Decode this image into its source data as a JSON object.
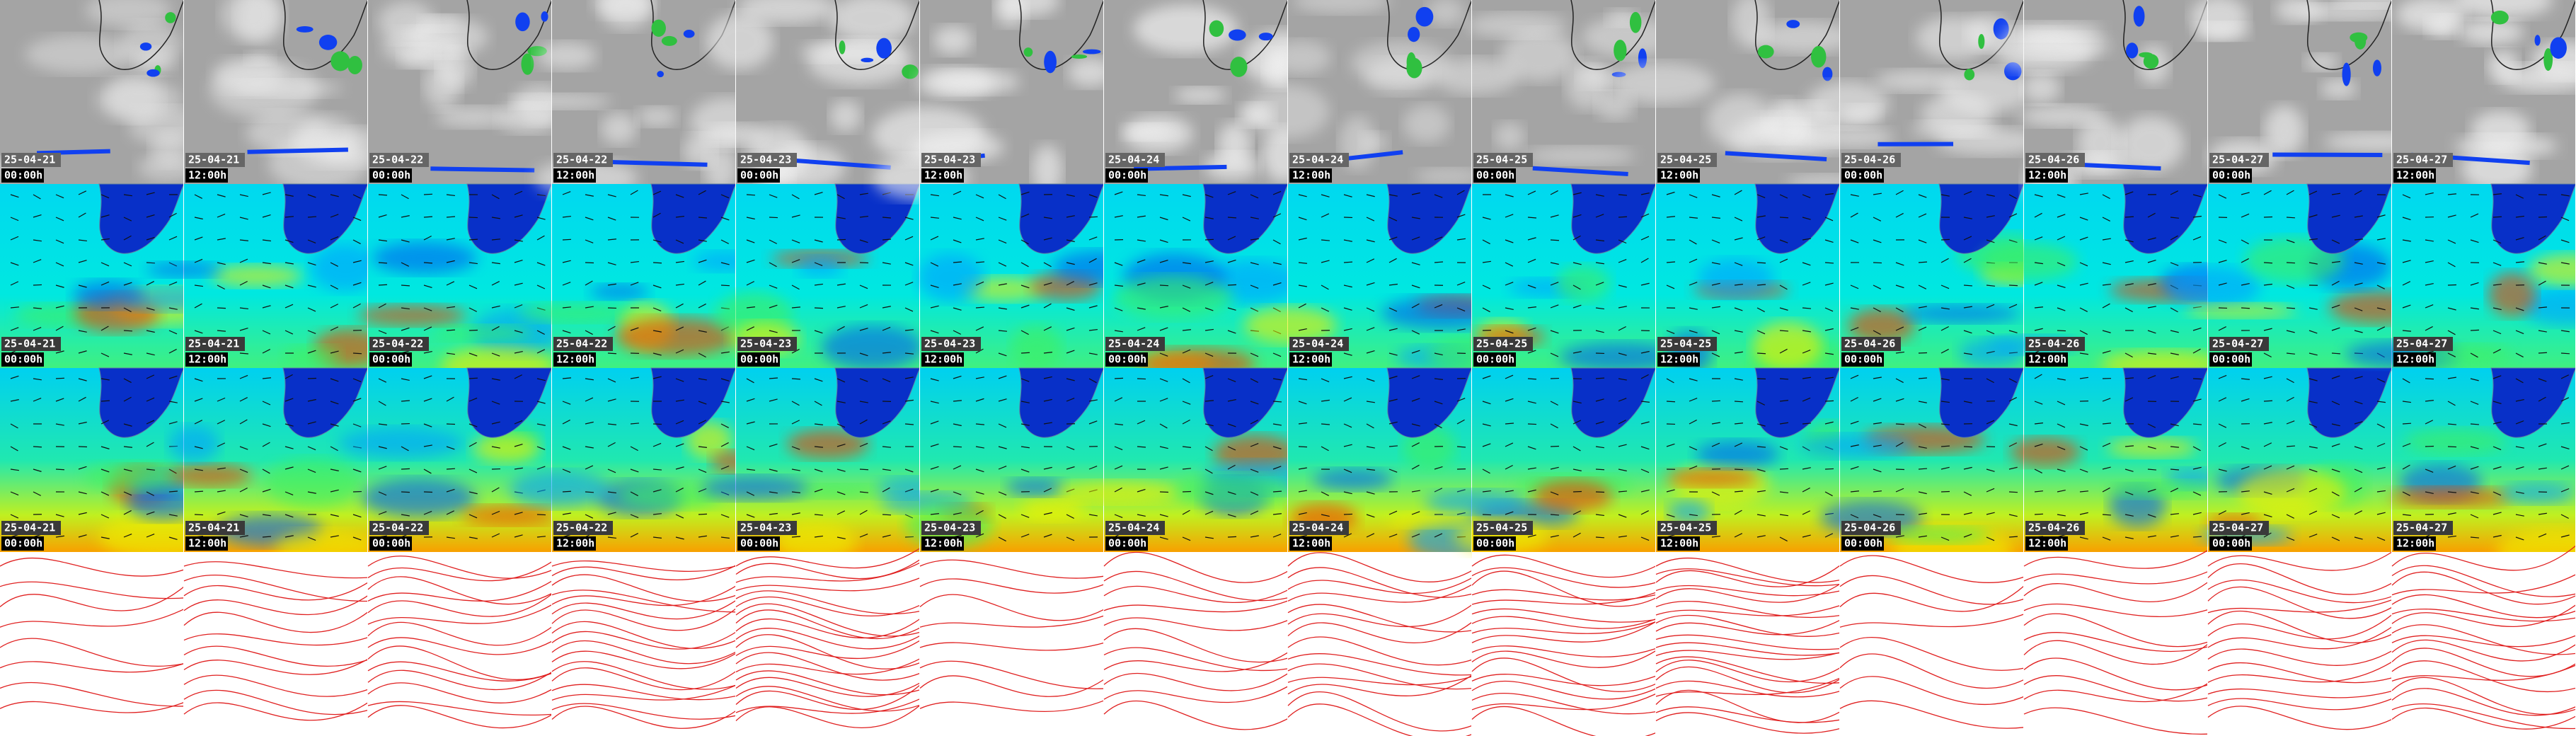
{
  "panels": [
    {
      "date": "25-04-21",
      "time": "00:00h"
    },
    {
      "date": "25-04-21",
      "time": "12:00h"
    },
    {
      "date": "25-04-22",
      "time": "00:00h"
    },
    {
      "date": "25-04-22",
      "time": "12:00h"
    },
    {
      "date": "25-04-23",
      "time": "00:00h"
    },
    {
      "date": "25-04-23",
      "time": "12:00h"
    },
    {
      "date": "25-04-24",
      "time": "00:00h"
    },
    {
      "date": "25-04-24",
      "time": "12:00h"
    },
    {
      "date": "25-04-25",
      "time": "00:00h"
    },
    {
      "date": "25-04-25",
      "time": "12:00h"
    },
    {
      "date": "25-04-26",
      "time": "00:00h"
    },
    {
      "date": "25-04-26",
      "time": "12:00h"
    },
    {
      "date": "25-04-27",
      "time": "00:00h"
    },
    {
      "date": "25-04-27",
      "time": "12:00h"
    }
  ]
}
